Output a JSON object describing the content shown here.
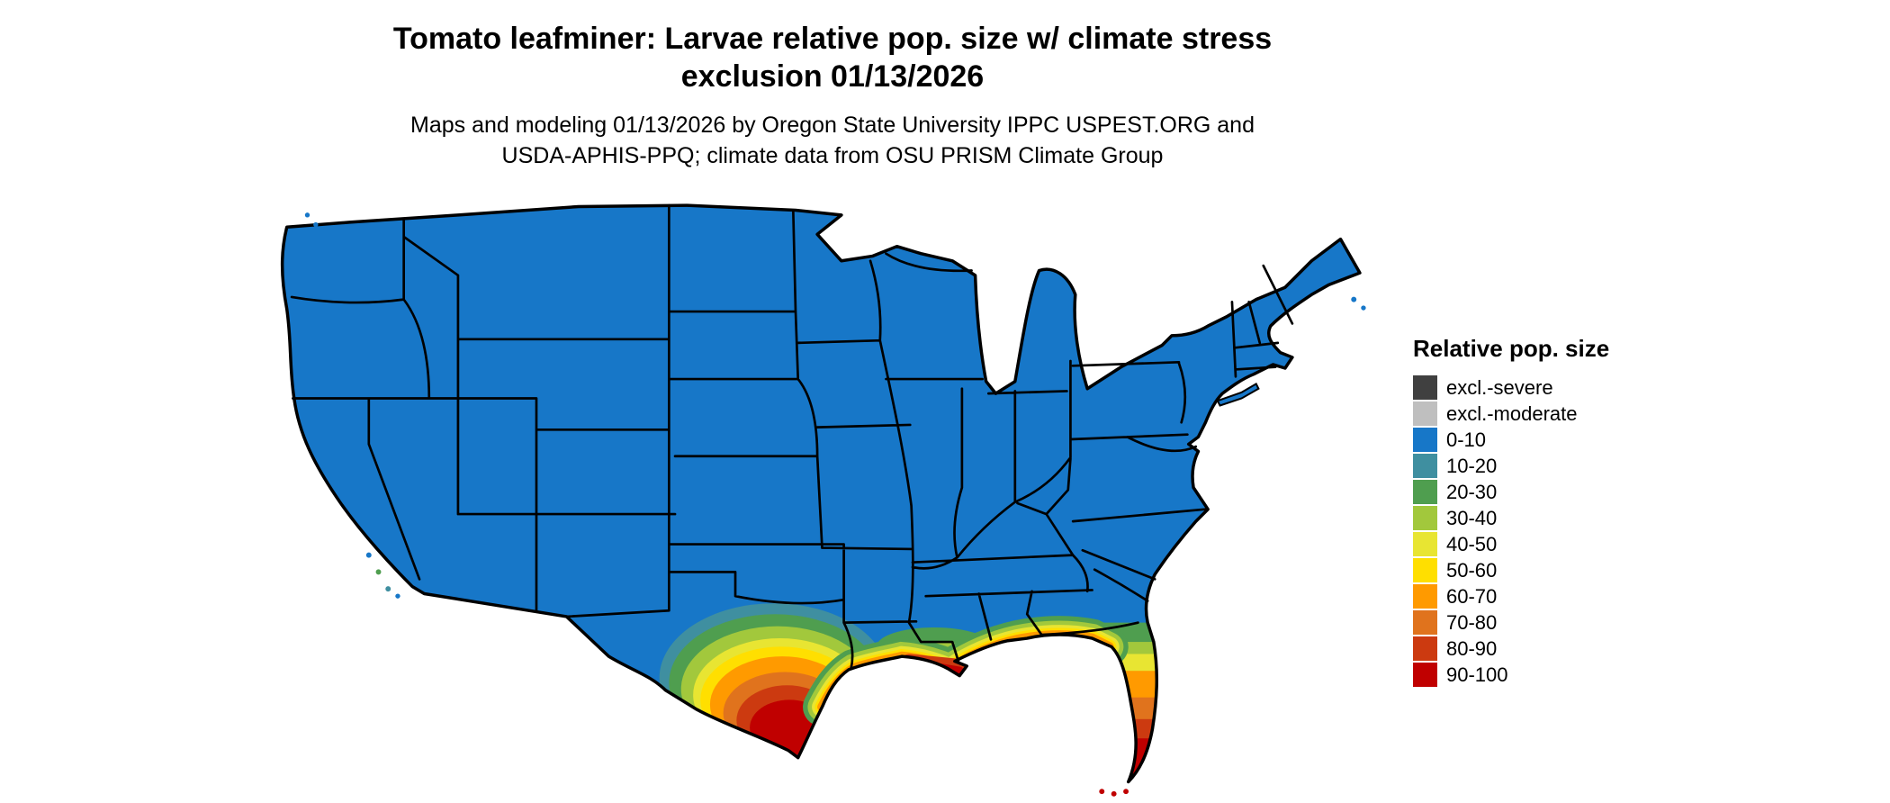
{
  "title": {
    "line1": "Tomato leafminer: Larvae relative pop. size w/ climate stress",
    "line2": "exclusion 01/13/2026"
  },
  "subtitle": {
    "line1": "Maps and modeling 01/13/2026 by Oregon State University IPPC USPEST.ORG and",
    "line2": "USDA-APHIS-PPQ; climate data from OSU PRISM Climate Group"
  },
  "legend": {
    "title": "Relative pop. size",
    "items": [
      {
        "label": "excl.-severe",
        "color": "#404040"
      },
      {
        "label": "excl.-moderate",
        "color": "#bfbfbf"
      },
      {
        "label": "0-10",
        "color": "#1777c8"
      },
      {
        "label": "10-20",
        "color": "#3f8fa0"
      },
      {
        "label": "20-30",
        "color": "#4f9e4f"
      },
      {
        "label": "30-40",
        "color": "#a2c83c"
      },
      {
        "label": "40-50",
        "color": "#e8e532"
      },
      {
        "label": "50-60",
        "color": "#ffdf00"
      },
      {
        "label": "60-70",
        "color": "#ff9a00"
      },
      {
        "label": "70-80",
        "color": "#e0731d"
      },
      {
        "label": "80-90",
        "color": "#cc3a10"
      },
      {
        "label": "90-100",
        "color": "#c00000"
      }
    ]
  },
  "map": {
    "region": "Contiguous United States",
    "dominant_class": "0-10",
    "high_value_areas": "southern Texas, Gulf Coast of Louisiana/Mississippi/Alabama, Florida peninsula"
  }
}
